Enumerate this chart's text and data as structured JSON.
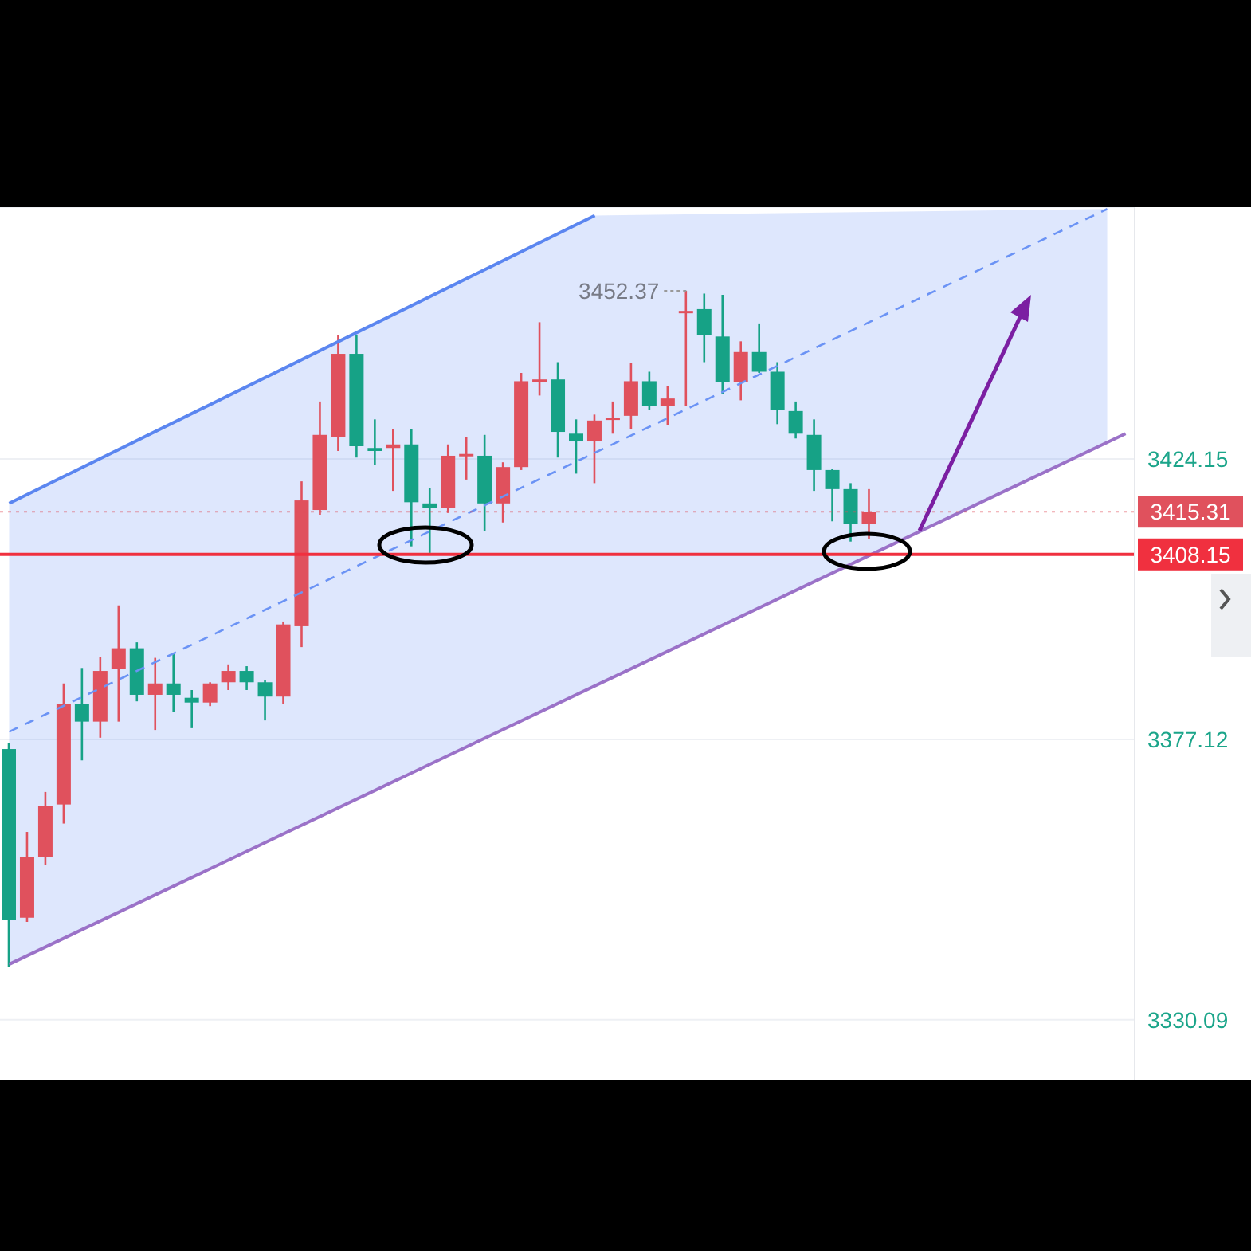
{
  "chart_data": {
    "type": "candlestick",
    "categories": [
      null,
      null,
      null,
      null,
      null,
      null,
      null,
      null,
      null,
      null,
      null,
      null,
      null,
      null,
      null,
      null,
      null,
      null,
      null,
      null,
      null,
      null,
      null,
      null,
      null,
      null,
      null,
      null,
      null,
      null,
      null,
      null,
      null,
      null,
      null,
      null,
      null,
      null,
      null,
      null,
      null,
      null,
      null,
      null,
      null,
      null,
      null,
      null,
      null,
      null,
      null,
      null,
      null,
      null,
      null,
      null,
      null,
      null,
      null,
      null,
      null,
      null
    ],
    "ylim": [
      3319.9,
      3466.4
    ],
    "yticks": [
      3330.09,
      3377.12,
      3424.15
    ],
    "tick_labels": "y",
    "grid": "y",
    "ohlc": [
      [
        3375.5,
        3376.5,
        3338.9,
        3346.9
      ],
      [
        3347.2,
        3361.6,
        3346.5,
        3357.4
      ],
      [
        3357.4,
        3368.3,
        3356.0,
        3365.9
      ],
      [
        3366.2,
        3386.5,
        3363.0,
        3383.0
      ],
      [
        3383.0,
        3389.1,
        3373.6,
        3380.1
      ],
      [
        3380.1,
        3391.0,
        3377.4,
        3388.6
      ],
      [
        3388.9,
        3399.6,
        3380.1,
        3392.4
      ],
      [
        3392.4,
        3393.4,
        3383.5,
        3384.6
      ],
      [
        3384.6,
        3390.8,
        3378.7,
        3386.5
      ],
      [
        3386.5,
        3391.6,
        3381.7,
        3384.6
      ],
      [
        3384.1,
        3385.4,
        3379.0,
        3383.3
      ],
      [
        3383.3,
        3386.7,
        3382.7,
        3386.5
      ],
      [
        3386.7,
        3389.7,
        3385.4,
        3388.6
      ],
      [
        3388.6,
        3389.4,
        3385.4,
        3386.7
      ],
      [
        3386.7,
        3387.0,
        3380.3,
        3384.3
      ],
      [
        3384.3,
        3396.9,
        3383.0,
        3396.4
      ],
      [
        3396.1,
        3420.4,
        3392.6,
        3417.2
      ],
      [
        3415.6,
        3433.8,
        3414.8,
        3428.2
      ],
      [
        3427.9,
        3445.0,
        3425.5,
        3441.8
      ],
      [
        3441.8,
        3445.0,
        3424.4,
        3426.3
      ],
      [
        3426.0,
        3430.8,
        3423.1,
        3425.5
      ],
      [
        3426.0,
        3429.2,
        3418.8,
        3426.6
      ],
      [
        3426.6,
        3429.2,
        3409.5,
        3416.9
      ],
      [
        3416.7,
        3419.3,
        3408.4,
        3415.9
      ],
      [
        3415.9,
        3426.6,
        3415.1,
        3424.7
      ],
      [
        3424.7,
        3427.9,
        3420.7,
        3425.0
      ],
      [
        3424.7,
        3428.2,
        3412.1,
        3416.7
      ],
      [
        3416.7,
        3423.6,
        3413.5,
        3422.8
      ],
      [
        3422.8,
        3438.6,
        3422.3,
        3437.2
      ],
      [
        3437.0,
        3447.1,
        3434.8,
        3437.5
      ],
      [
        3437.5,
        3440.4,
        3424.4,
        3428.7
      ],
      [
        3428.4,
        3430.8,
        3421.7,
        3427.1
      ],
      [
        3427.1,
        3431.6,
        3420.1,
        3430.6
      ],
      [
        3430.8,
        3433.8,
        3428.4,
        3431.1
      ],
      [
        3431.4,
        3440.2,
        3429.2,
        3437.2
      ],
      [
        3437.2,
        3438.8,
        3432.4,
        3433.0
      ],
      [
        3433.0,
        3436.4,
        3429.8,
        3434.3
      ],
      [
        3448.7,
        3452.37,
        3433.0,
        3449.0
      ],
      [
        3449.3,
        3451.9,
        3440.4,
        3445.0
      ],
      [
        3444.7,
        3451.7,
        3435.1,
        3437.0
      ],
      [
        3437.0,
        3443.9,
        3434.0,
        3442.1
      ],
      [
        3442.1,
        3446.9,
        3438.6,
        3438.8
      ],
      [
        3438.8,
        3440.4,
        3430.0,
        3432.4
      ],
      [
        3432.2,
        3433.8,
        3427.6,
        3428.4
      ],
      [
        3428.2,
        3430.8,
        3418.8,
        3422.3
      ],
      [
        3422.3,
        3422.5,
        3413.7,
        3419.1
      ],
      [
        3419.1,
        3420.1,
        3410.3,
        3413.2
      ],
      [
        3413.2,
        3419.1,
        3410.8,
        3415.31
      ],
      null,
      null,
      null,
      null,
      null,
      null,
      null,
      null,
      null,
      null,
      null,
      null,
      null,
      null
    ],
    "colors": [
      "#16a286",
      "#e0515d",
      "#e0515d",
      "#e0515d",
      "#16a286",
      "#e0515d",
      "#e0515d",
      "#16a286",
      "#e0515d",
      "#16a286",
      "#16a286",
      "#e0515d",
      "#e0515d",
      "#16a286",
      "#16a286",
      "#e0515d",
      "#e0515d",
      "#e0515d",
      "#e0515d",
      "#16a286",
      "#16a286",
      "#e0515d",
      "#16a286",
      "#16a286",
      "#e0515d",
      "#e0515d",
      "#16a286",
      "#e0515d",
      "#e0515d",
      "#e0515d",
      "#16a286",
      "#16a286",
      "#e0515d",
      "#e0515d",
      "#e0515d",
      "#16a286",
      "#e0515d",
      "#e0515d",
      "#16a286",
      "#16a286",
      "#e0515d",
      "#16a286",
      "#16a286",
      "#16a286",
      "#16a286",
      "#16a286",
      "#16a286",
      "#e0515d",
      null,
      null,
      null,
      null,
      null,
      null,
      null,
      null,
      null,
      null,
      null,
      null,
      null,
      null
    ],
    "series": [
      {
        "type": "line",
        "color": "#5b86f0",
        "values": [
          3416.7,
          null,
          null,
          null,
          null,
          null,
          null,
          null,
          null,
          null,
          null,
          null,
          null,
          null,
          null,
          null,
          null,
          null,
          null,
          null,
          null,
          null,
          null,
          null,
          null,
          null,
          null,
          null,
          null,
          null,
          null,
          null,
          3465.0,
          null,
          null,
          null,
          null,
          null,
          null,
          null,
          null,
          null,
          null,
          null,
          null,
          null,
          null,
          null,
          null,
          null,
          null,
          null,
          null,
          null,
          null,
          null,
          null,
          null,
          null,
          null,
          null,
          null
        ]
      },
      {
        "type": "line",
        "color": "#6b93f5",
        "line_style": "dashed",
        "values": [
          3378.4,
          null,
          null,
          null,
          null,
          null,
          null,
          null,
          null,
          null,
          null,
          null,
          null,
          null,
          null,
          null,
          null,
          null,
          null,
          null,
          null,
          null,
          null,
          null,
          null,
          null,
          null,
          null,
          null,
          null,
          null,
          null,
          3425.2,
          null,
          null,
          null,
          null,
          null,
          null,
          null,
          null,
          null,
          null,
          null,
          null,
          null,
          null,
          null,
          null,
          null,
          null,
          null,
          null,
          null,
          null,
          null,
          null,
          null,
          null,
          null,
          3466.1,
          null
        ],
        "lower": [
          3339.4,
          null,
          null,
          null,
          null,
          null,
          null,
          null,
          null,
          null,
          null,
          null,
          null,
          null,
          null,
          null,
          null,
          null,
          null,
          null,
          null,
          null,
          null,
          null,
          null,
          null,
          null,
          null,
          null,
          null,
          null,
          null,
          3385.9,
          null,
          null,
          null,
          null,
          null,
          null,
          null,
          null,
          null,
          null,
          null,
          null,
          null,
          null,
          null,
          null,
          null,
          null,
          null,
          null,
          null,
          null,
          null,
          null,
          null,
          null,
          null,
          3427.0,
          null
        ],
        "upper": [
          3416.7,
          null,
          null,
          null,
          null,
          null,
          null,
          null,
          null,
          null,
          null,
          null,
          null,
          null,
          null,
          null,
          null,
          null,
          null,
          null,
          null,
          null,
          null,
          null,
          null,
          null,
          null,
          null,
          null,
          null,
          null,
          null,
          3465.0,
          null,
          null,
          null,
          null,
          null,
          null,
          null,
          null,
          null,
          null,
          null,
          null,
          null,
          null,
          null,
          null,
          null,
          null,
          null,
          null,
          null,
          null,
          null,
          null,
          null,
          null,
          null,
          3466.1,
          null
        ]
      },
      {
        "type": "line",
        "color": "#9b72c8",
        "values": [
          3339.4,
          null,
          null,
          null,
          null,
          null,
          null,
          null,
          null,
          null,
          null,
          null,
          null,
          null,
          null,
          null,
          null,
          null,
          null,
          null,
          null,
          null,
          null,
          null,
          null,
          null,
          null,
          null,
          null,
          null,
          null,
          null,
          null,
          null,
          null,
          null,
          null,
          null,
          null,
          null,
          null,
          null,
          null,
          null,
          null,
          null,
          null,
          null,
          null,
          null,
          null,
          null,
          null,
          null,
          null,
          null,
          null,
          null,
          null,
          null,
          null,
          3428.4
        ]
      }
    ],
    "ref_lines": [
      {
        "axis": "y",
        "value": 3415.31,
        "label": "3415.31",
        "color": "#e0515d",
        "line_style": "dotted"
      },
      {
        "axis": "y",
        "value": 3408.15,
        "label": "3408.15",
        "color": "#f0303f",
        "line_style": "solid"
      }
    ],
    "annotations": [
      "3452.37"
    ]
  }
}
